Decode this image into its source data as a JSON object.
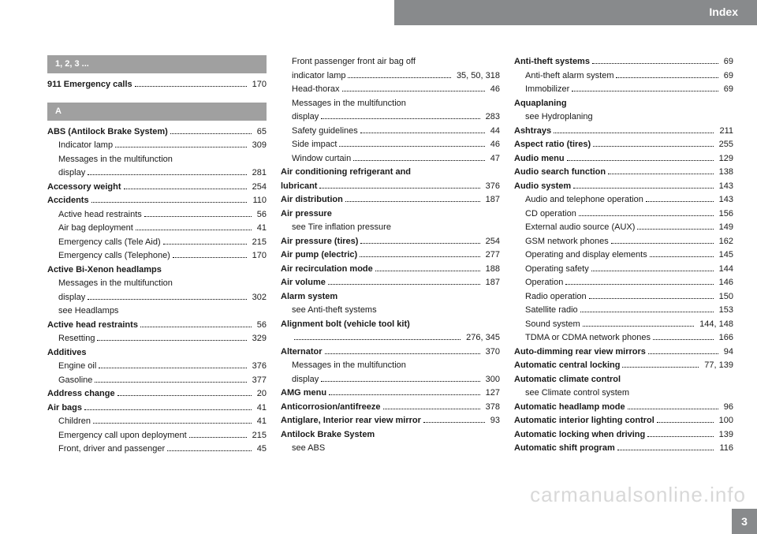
{
  "header": {
    "title": "Index",
    "pageNumber": "3"
  },
  "watermark": "carmanualsonline.info",
  "sections": [
    {
      "type": "head",
      "text": "1, 2, 3 ..."
    },
    {
      "type": "entry",
      "bold": true,
      "label": "911 Emergency calls",
      "page": "170"
    },
    {
      "type": "spacer"
    },
    {
      "type": "head",
      "text": "A"
    },
    {
      "type": "entry",
      "bold": true,
      "label": "ABS (Antilock Brake System)",
      "page": "65"
    },
    {
      "type": "entry",
      "sub": true,
      "label": "Indicator lamp",
      "page": "309"
    },
    {
      "type": "noline",
      "sub": true,
      "label": "Messages in the multifunction"
    },
    {
      "type": "entry",
      "sub": true,
      "label": "display",
      "page": "281"
    },
    {
      "type": "entry",
      "bold": true,
      "label": "Accessory weight",
      "page": "254"
    },
    {
      "type": "entry",
      "bold": true,
      "label": "Accidents",
      "page": "110"
    },
    {
      "type": "entry",
      "sub": true,
      "label": "Active head restraints",
      "page": "56"
    },
    {
      "type": "entry",
      "sub": true,
      "label": "Air bag deployment",
      "page": "41"
    },
    {
      "type": "entry",
      "sub": true,
      "label": "Emergency calls (Tele Aid)",
      "page": "215"
    },
    {
      "type": "entry",
      "sub": true,
      "label": "Emergency calls (Telephone)",
      "page": "170"
    },
    {
      "type": "noline",
      "bold": true,
      "label": "Active Bi-Xenon headlamps"
    },
    {
      "type": "noline",
      "sub": true,
      "label": "Messages in the multifunction"
    },
    {
      "type": "entry",
      "sub": true,
      "label": "display",
      "page": "302"
    },
    {
      "type": "noline",
      "sub": true,
      "label": "see Headlamps"
    },
    {
      "type": "entry",
      "bold": true,
      "label": "Active head restraints",
      "page": "56"
    },
    {
      "type": "entry",
      "sub": true,
      "label": "Resetting",
      "page": "329"
    },
    {
      "type": "noline",
      "bold": true,
      "label": "Additives"
    },
    {
      "type": "entry",
      "sub": true,
      "label": "Engine oil",
      "page": "376"
    },
    {
      "type": "entry",
      "sub": true,
      "label": "Gasoline",
      "page": "377"
    },
    {
      "type": "entry",
      "bold": true,
      "label": "Address change",
      "page": "20"
    },
    {
      "type": "entry",
      "bold": true,
      "label": "Air bags",
      "page": "41"
    },
    {
      "type": "entry",
      "sub": true,
      "label": "Children",
      "page": "41"
    },
    {
      "type": "entry",
      "sub": true,
      "label": "Emergency call upon deployment",
      "page": "215"
    },
    {
      "type": "entry",
      "sub": true,
      "label": "Front, driver and passenger",
      "page": "45"
    },
    {
      "type": "noline",
      "sub": true,
      "label": "Front passenger front air bag off"
    },
    {
      "type": "entry",
      "sub": true,
      "label": "indicator lamp",
      "page": "35, 50, 318"
    },
    {
      "type": "entry",
      "sub": true,
      "label": "Head-thorax",
      "page": "46"
    },
    {
      "type": "noline",
      "sub": true,
      "label": "Messages in the multifunction"
    },
    {
      "type": "entry",
      "sub": true,
      "label": "display",
      "page": "283"
    },
    {
      "type": "entry",
      "sub": true,
      "label": "Safety guidelines",
      "page": "44"
    },
    {
      "type": "entry",
      "sub": true,
      "label": "Side impact",
      "page": "46"
    },
    {
      "type": "entry",
      "sub": true,
      "label": "Window curtain",
      "page": "47"
    },
    {
      "type": "noline",
      "bold": true,
      "label": "Air conditioning refrigerant and"
    },
    {
      "type": "entry",
      "bold": true,
      "label": "lubricant",
      "page": "376"
    },
    {
      "type": "entry",
      "bold": true,
      "label": "Air distribution",
      "page": "187"
    },
    {
      "type": "noline",
      "bold": true,
      "label": "Air pressure"
    },
    {
      "type": "noline",
      "sub": true,
      "label": "see Tire inflation pressure"
    },
    {
      "type": "entry",
      "bold": true,
      "label": "Air pressure (tires)",
      "page": "254"
    },
    {
      "type": "entry",
      "bold": true,
      "label": "Air pump (electric)",
      "page": "277"
    },
    {
      "type": "entry",
      "bold": true,
      "label": "Air recirculation mode",
      "page": "188"
    },
    {
      "type": "entry",
      "bold": true,
      "label": "Air volume",
      "page": "187"
    },
    {
      "type": "noline",
      "bold": true,
      "label": "Alarm system"
    },
    {
      "type": "noline",
      "sub": true,
      "label": "see Anti-theft systems"
    },
    {
      "type": "noline",
      "bold": true,
      "label": "Alignment bolt (vehicle tool kit)"
    },
    {
      "type": "entry",
      "sub": true,
      "label": "",
      "page": "276, 345"
    },
    {
      "type": "entry",
      "bold": true,
      "label": "Alternator",
      "page": "370"
    },
    {
      "type": "noline",
      "sub": true,
      "label": "Messages in the multifunction"
    },
    {
      "type": "entry",
      "sub": true,
      "label": "display",
      "page": "300"
    },
    {
      "type": "entry",
      "bold": true,
      "label": "AMG menu",
      "page": "127"
    },
    {
      "type": "entry",
      "bold": true,
      "label": "Anticorrosion/antifreeze",
      "page": "378"
    },
    {
      "type": "entry",
      "bold": true,
      "label": "Antiglare, Interior rear view mirror",
      "page": "93"
    },
    {
      "type": "noline",
      "bold": true,
      "label": "Antilock Brake System"
    },
    {
      "type": "noline",
      "sub": true,
      "label": "see ABS"
    },
    {
      "type": "entry",
      "bold": true,
      "label": "Anti-theft systems",
      "page": "69"
    },
    {
      "type": "entry",
      "sub": true,
      "label": "Anti-theft alarm system",
      "page": "69"
    },
    {
      "type": "entry",
      "sub": true,
      "label": "Immobilizer",
      "page": "69"
    },
    {
      "type": "noline",
      "bold": true,
      "label": "Aquaplaning"
    },
    {
      "type": "noline",
      "sub": true,
      "label": "see Hydroplaning"
    },
    {
      "type": "entry",
      "bold": true,
      "label": "Ashtrays",
      "page": "211"
    },
    {
      "type": "entry",
      "bold": true,
      "label": "Aspect ratio (tires)",
      "page": "255"
    },
    {
      "type": "entry",
      "bold": true,
      "label": "Audio menu",
      "page": "129"
    },
    {
      "type": "entry",
      "bold": true,
      "label": "Audio search function",
      "page": "138"
    },
    {
      "type": "entry",
      "bold": true,
      "label": "Audio system",
      "page": "143"
    },
    {
      "type": "entry",
      "sub": true,
      "label": "Audio and telephone operation",
      "page": "143"
    },
    {
      "type": "entry",
      "sub": true,
      "label": "CD operation",
      "page": "156"
    },
    {
      "type": "entry",
      "sub": true,
      "label": "External audio source (AUX)",
      "page": "149"
    },
    {
      "type": "entry",
      "sub": true,
      "label": "GSM network phones",
      "page": "162"
    },
    {
      "type": "entry",
      "sub": true,
      "label": "Operating and display elements",
      "page": "145"
    },
    {
      "type": "entry",
      "sub": true,
      "label": "Operating safety",
      "page": "144"
    },
    {
      "type": "entry",
      "sub": true,
      "label": "Operation",
      "page": "146"
    },
    {
      "type": "entry",
      "sub": true,
      "label": "Radio operation",
      "page": "150"
    },
    {
      "type": "entry",
      "sub": true,
      "label": "Satellite radio",
      "page": "153"
    },
    {
      "type": "entry",
      "sub": true,
      "label": "Sound system",
      "page": "144, 148"
    },
    {
      "type": "entry",
      "sub": true,
      "label": "TDMA or CDMA network phones",
      "page": "166"
    },
    {
      "type": "entry",
      "bold": true,
      "label": "Auto-dimming rear view mirrors",
      "page": "94"
    },
    {
      "type": "entry",
      "bold": true,
      "label": "Automatic central locking",
      "page": "77, 139"
    },
    {
      "type": "noline",
      "bold": true,
      "label": "Automatic climate control"
    },
    {
      "type": "noline",
      "sub": true,
      "label": "see Climate control system"
    },
    {
      "type": "entry",
      "bold": true,
      "label": "Automatic headlamp mode",
      "page": "96"
    },
    {
      "type": "entry",
      "bold": true,
      "label": "Automatic interior lighting control",
      "page": "100"
    },
    {
      "type": "entry",
      "bold": true,
      "label": "Automatic locking when driving",
      "page": "139"
    },
    {
      "type": "entry",
      "bold": true,
      "label": "Automatic shift program",
      "page": "116"
    }
  ]
}
